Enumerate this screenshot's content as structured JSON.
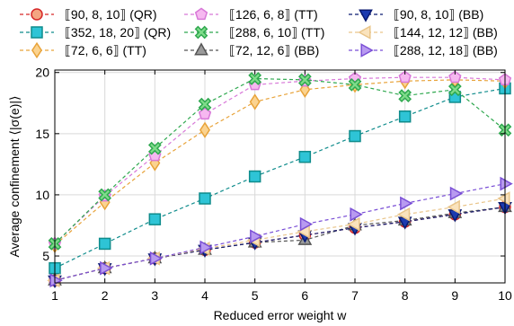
{
  "chart_data": {
    "type": "line",
    "xlabel": "Reduced error weight w",
    "ylabel": "Average confinement ⟨|σ(e)|⟩",
    "xlim": [
      1,
      10
    ],
    "ylim": [
      2.8,
      20.2
    ],
    "x_ticks": [
      1,
      2,
      3,
      4,
      5,
      6,
      7,
      8,
      9,
      10
    ],
    "y_ticks": [
      5,
      10,
      15,
      20
    ],
    "grid": true,
    "legend_position": "top",
    "x": [
      1,
      2,
      3,
      4,
      5,
      6,
      7,
      8,
      9,
      10
    ],
    "series": [
      {
        "name": "⟦90, 8, 10⟧ (QR)",
        "marker": "circle",
        "color": "#d62728",
        "fill": "#f4a582",
        "values": [
          3.0,
          4.0,
          4.8,
          5.5,
          6.1,
          6.7,
          7.3,
          7.8,
          8.4,
          9.0
        ]
      },
      {
        "name": "⟦352, 18, 20⟧ (QR)",
        "marker": "square",
        "color": "#0f8c8c",
        "fill": "#2ec4d6",
        "values": [
          4.0,
          6.0,
          8.0,
          9.7,
          11.5,
          13.1,
          14.8,
          16.4,
          18.0,
          18.7
        ]
      },
      {
        "name": "⟦72, 6, 6⟧ (TT)",
        "marker": "diamond",
        "color": "#e8a33a",
        "fill": "#fbd38f",
        "values": [
          5.9,
          9.4,
          12.6,
          15.3,
          17.6,
          18.6,
          19.0,
          19.3,
          19.4,
          19.3
        ]
      },
      {
        "name": "⟦126, 6, 8⟧ (TT)",
        "marker": "pentagon",
        "color": "#d878d8",
        "fill": "#f6b8f0",
        "values": [
          6.0,
          9.9,
          13.2,
          16.6,
          19.0,
          19.3,
          19.5,
          19.6,
          19.6,
          19.4
        ]
      },
      {
        "name": "⟦288, 6, 10⟧ (TT)",
        "marker": "x",
        "color": "#2fa84f",
        "fill": "#7fdc8a",
        "values": [
          6.0,
          10.0,
          13.8,
          17.4,
          19.5,
          19.4,
          19.0,
          18.1,
          18.6,
          15.3
        ]
      },
      {
        "name": "⟦72, 12, 6⟧ (BB)",
        "marker": "triangle-up",
        "color": "#555555",
        "fill": "#9a9a9a",
        "values": [
          3.0,
          4.0,
          4.8,
          5.5,
          6.1,
          6.3,
          7.5,
          7.9,
          8.5,
          9.0
        ]
      },
      {
        "name": "⟦90, 8, 10⟧ (BB)",
        "marker": "triangle-down",
        "color": "#0a1a70",
        "fill": "#1c3bb0",
        "values": [
          3.0,
          4.0,
          4.8,
          5.5,
          6.1,
          6.7,
          7.3,
          7.8,
          8.4,
          9.0
        ]
      },
      {
        "name": "⟦144, 12, 12⟧ (BB)",
        "marker": "triangle-left",
        "color": "#e9c58a",
        "fill": "#fae3bd",
        "values": [
          3.0,
          4.0,
          4.8,
          5.6,
          6.3,
          7.0,
          7.6,
          8.4,
          9.0,
          9.7
        ]
      },
      {
        "name": "⟦288, 12, 18⟧ (BB)",
        "marker": "triangle-right",
        "color": "#7a4fd6",
        "fill": "#b89af0",
        "values": [
          3.0,
          4.0,
          4.8,
          5.7,
          6.6,
          7.6,
          8.4,
          9.3,
          10.1,
          10.9
        ]
      }
    ]
  }
}
